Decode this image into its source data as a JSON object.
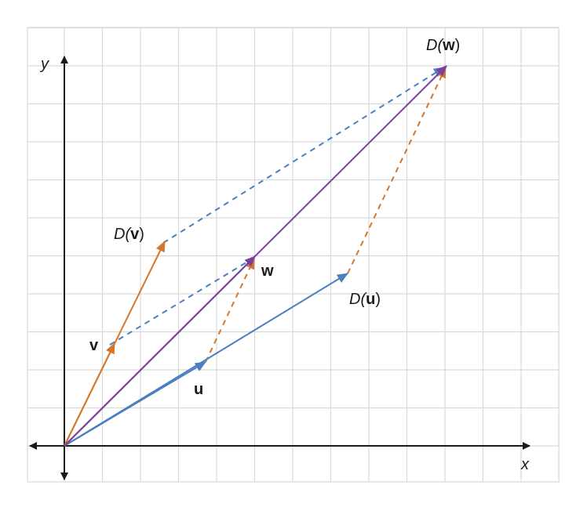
{
  "axes": {
    "x_label": "x",
    "y_label": "y"
  },
  "labels": {
    "u": "u",
    "v": "v",
    "w": "w",
    "Du_prefix": "D(",
    "Du_var": "u",
    "Dv_prefix": "D(",
    "Dv_var": "v",
    "Dw_prefix": "D(",
    "Dw_var": "w",
    "close_paren": ")"
  },
  "colors": {
    "blue": "#4a7fc1",
    "orange": "#d4772c",
    "purple": "#7b3fa0",
    "grid": "#d9d9d9",
    "axis": "#1a1a1a"
  }
}
